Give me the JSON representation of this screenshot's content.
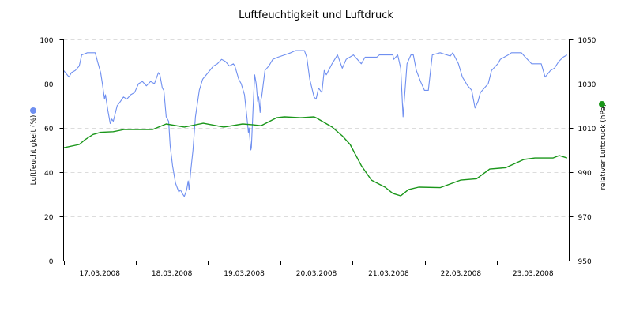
{
  "chart_data": {
    "type": "line",
    "title": "Luftfeuchtigkeit und Luftdruck",
    "x_range": [
      "2008-03-17T00:00",
      "2008-03-24T00:00"
    ],
    "x_tick_labels": [
      "17.03.2008",
      "18.03.2008",
      "19.03.2008",
      "20.03.2008",
      "21.03.2008",
      "22.03.2008",
      "23.03.2008"
    ],
    "grid": "horizontal dashed",
    "left_axis": {
      "label": "Luftfeuchtigkeit (%)",
      "range": [
        0,
        100
      ],
      "ticks": [
        "0",
        "20",
        "40",
        "60",
        "80",
        "100"
      ]
    },
    "right_axis": {
      "label": "relativer Luftdruck (hPa)",
      "range": [
        950,
        1050
      ],
      "ticks": [
        "950",
        "970",
        "990",
        "1010",
        "1030",
        "1050"
      ]
    },
    "series": [
      {
        "name": "Luftfeuchtigkeit (%)",
        "axis": "left",
        "color": "#6f8ff0",
        "points": [
          [
            "2008-03-17T00:00",
            86
          ],
          [
            "2008-03-17T01:48",
            83
          ],
          [
            "2008-03-17T02:36",
            85
          ],
          [
            "2008-03-17T03:54",
            86
          ],
          [
            "2008-03-17T05:12",
            88
          ],
          [
            "2008-03-17T06:00",
            93
          ],
          [
            "2008-03-17T07:54",
            94
          ],
          [
            "2008-03-17T10:30",
            94
          ],
          [
            "2008-03-17T11:18",
            90
          ],
          [
            "2008-03-17T12:18",
            85
          ],
          [
            "2008-03-17T12:54",
            80
          ],
          [
            "2008-03-17T13:36",
            73
          ],
          [
            "2008-03-17T13:54",
            75
          ],
          [
            "2008-03-17T14:42",
            68
          ],
          [
            "2008-03-17T15:30",
            62
          ],
          [
            "2008-03-17T16:00",
            64
          ],
          [
            "2008-03-17T16:30",
            63
          ],
          [
            "2008-03-17T17:48",
            70
          ],
          [
            "2008-03-17T18:54",
            72
          ],
          [
            "2008-03-17T19:54",
            74
          ],
          [
            "2008-03-17T21:00",
            73
          ],
          [
            "2008-03-17T22:18",
            75
          ],
          [
            "2008-03-17T23:36",
            76
          ],
          [
            "2008-03-18T00:54",
            80
          ],
          [
            "2008-03-18T02:12",
            81
          ],
          [
            "2008-03-18T03:30",
            79
          ],
          [
            "2008-03-18T04:54",
            81
          ],
          [
            "2008-03-18T06:12",
            80
          ],
          [
            "2008-03-18T07:30",
            85
          ],
          [
            "2008-03-18T08:00",
            84
          ],
          [
            "2008-03-18T08:48",
            78
          ],
          [
            "2008-03-18T09:18",
            77
          ],
          [
            "2008-03-18T10:06",
            65
          ],
          [
            "2008-03-18T10:54",
            63
          ],
          [
            "2008-03-18T11:24",
            52
          ],
          [
            "2008-03-18T12:12",
            43
          ],
          [
            "2008-03-18T13:12",
            35
          ],
          [
            "2008-03-18T14:18",
            31
          ],
          [
            "2008-03-18T14:48",
            32
          ],
          [
            "2008-03-18T15:36",
            30
          ],
          [
            "2008-03-18T16:06",
            29
          ],
          [
            "2008-03-18T16:54",
            32
          ],
          [
            "2008-03-18T17:24",
            36
          ],
          [
            "2008-03-18T17:42",
            32
          ],
          [
            "2008-03-18T18:12",
            40
          ],
          [
            "2008-03-18T19:00",
            50
          ],
          [
            "2008-03-18T19:48",
            65
          ],
          [
            "2008-03-18T21:06",
            77
          ],
          [
            "2008-03-18T22:12",
            82
          ],
          [
            "2008-03-19T00:00",
            85
          ],
          [
            "2008-03-19T01:48",
            88
          ],
          [
            "2008-03-19T03:06",
            89
          ],
          [
            "2008-03-19T04:30",
            91
          ],
          [
            "2008-03-19T05:48",
            90
          ],
          [
            "2008-03-19T07:06",
            88
          ],
          [
            "2008-03-19T08:24",
            89
          ],
          [
            "2008-03-19T08:54",
            88
          ],
          [
            "2008-03-19T10:12",
            82
          ],
          [
            "2008-03-19T11:00",
            80
          ],
          [
            "2008-03-19T12:06",
            75
          ],
          [
            "2008-03-19T12:54",
            65
          ],
          [
            "2008-03-19T13:24",
            58
          ],
          [
            "2008-03-19T13:36",
            60
          ],
          [
            "2008-03-19T14:12",
            50
          ],
          [
            "2008-03-19T14:24",
            51
          ],
          [
            "2008-03-19T15:00",
            70
          ],
          [
            "2008-03-19T15:30",
            84
          ],
          [
            "2008-03-19T16:00",
            80
          ],
          [
            "2008-03-19T16:30",
            72
          ],
          [
            "2008-03-19T16:48",
            74
          ],
          [
            "2008-03-19T17:18",
            67
          ],
          [
            "2008-03-19T17:36",
            73
          ],
          [
            "2008-03-19T17:48",
            74
          ],
          [
            "2008-03-19T18:54",
            86
          ],
          [
            "2008-03-19T20:12",
            88
          ],
          [
            "2008-03-19T21:30",
            91
          ],
          [
            "2008-03-19T23:18",
            92
          ],
          [
            "2008-03-20T01:24",
            93
          ],
          [
            "2008-03-20T03:30",
            94
          ],
          [
            "2008-03-20T05:06",
            95
          ],
          [
            "2008-03-20T08:00",
            95
          ],
          [
            "2008-03-20T08:48",
            92
          ],
          [
            "2008-03-20T09:48",
            82
          ],
          [
            "2008-03-20T11:12",
            74
          ],
          [
            "2008-03-20T11:54",
            73
          ],
          [
            "2008-03-20T12:42",
            78
          ],
          [
            "2008-03-20T13:48",
            76
          ],
          [
            "2008-03-20T14:36",
            86
          ],
          [
            "2008-03-20T15:18",
            84
          ],
          [
            "2008-03-20T17:12",
            89
          ],
          [
            "2008-03-20T19:00",
            93
          ],
          [
            "2008-03-20T20:36",
            87
          ],
          [
            "2008-03-20T21:54",
            91
          ],
          [
            "2008-03-21T00:18",
            93
          ],
          [
            "2008-03-21T02:54",
            89
          ],
          [
            "2008-03-21T04:12",
            92
          ],
          [
            "2008-03-21T08:06",
            92
          ],
          [
            "2008-03-21T08:54",
            93
          ],
          [
            "2008-03-21T13:24",
            93
          ],
          [
            "2008-03-21T13:42",
            91
          ],
          [
            "2008-03-21T15:00",
            93
          ],
          [
            "2008-03-21T16:00",
            87
          ],
          [
            "2008-03-21T16:48",
            65
          ],
          [
            "2008-03-21T18:06",
            89
          ],
          [
            "2008-03-21T19:24",
            93
          ],
          [
            "2008-03-21T20:12",
            93
          ],
          [
            "2008-03-21T21:12",
            86
          ],
          [
            "2008-03-21T22:36",
            81
          ],
          [
            "2008-03-21T23:54",
            77
          ],
          [
            "2008-03-22T01:12",
            77
          ],
          [
            "2008-03-22T02:30",
            93
          ],
          [
            "2008-03-22T05:06",
            94
          ],
          [
            "2008-03-22T08:30",
            92.5
          ],
          [
            "2008-03-22T09:18",
            94
          ],
          [
            "2008-03-22T11:12",
            89
          ],
          [
            "2008-03-22T12:30",
            83
          ],
          [
            "2008-03-22T14:18",
            79
          ],
          [
            "2008-03-22T15:36",
            77
          ],
          [
            "2008-03-22T16:42",
            69
          ],
          [
            "2008-03-22T17:42",
            72
          ],
          [
            "2008-03-22T18:30",
            76
          ],
          [
            "2008-03-22T21:06",
            80
          ],
          [
            "2008-03-22T22:12",
            86
          ],
          [
            "2008-03-23T00:18",
            89
          ],
          [
            "2008-03-23T01:06",
            91
          ],
          [
            "2008-03-23T03:42",
            93
          ],
          [
            "2008-03-23T04:48",
            94
          ],
          [
            "2008-03-23T08:06",
            94
          ],
          [
            "2008-03-23T09:24",
            92
          ],
          [
            "2008-03-23T11:30",
            89
          ],
          [
            "2008-03-23T14:42",
            89
          ],
          [
            "2008-03-23T16:00",
            83
          ],
          [
            "2008-03-23T17:48",
            86
          ],
          [
            "2008-03-23T19:06",
            87
          ],
          [
            "2008-03-23T20:30",
            90
          ],
          [
            "2008-03-23T22:00",
            92
          ],
          [
            "2008-03-23T23:18",
            93
          ]
        ]
      },
      {
        "name": "relativer Luftdruck (hPa)",
        "axis": "right",
        "color": "#1a961a",
        "points": [
          [
            "2008-03-17T00:00",
            1001
          ],
          [
            "2008-03-17T05:12",
            1002.5
          ],
          [
            "2008-03-17T07:06",
            1004.6
          ],
          [
            "2008-03-17T09:42",
            1007
          ],
          [
            "2008-03-17T12:18",
            1008
          ],
          [
            "2008-03-17T16:30",
            1008.3
          ],
          [
            "2008-03-17T20:12",
            1009.3
          ],
          [
            "2008-03-18T05:36",
            1009.3
          ],
          [
            "2008-03-18T10:06",
            1011.8
          ],
          [
            "2008-03-18T16:06",
            1010.4
          ],
          [
            "2008-03-18T22:24",
            1012.1
          ],
          [
            "2008-03-19T05:12",
            1010.4
          ],
          [
            "2008-03-19T11:30",
            1011.8
          ],
          [
            "2008-03-19T15:00",
            1011.4
          ],
          [
            "2008-03-19T17:36",
            1011
          ],
          [
            "2008-03-19T22:48",
            1014.6
          ],
          [
            "2008-03-20T01:24",
            1015
          ],
          [
            "2008-03-20T06:42",
            1014.6
          ],
          [
            "2008-03-20T11:12",
            1015
          ],
          [
            "2008-03-20T11:54",
            1014.6
          ],
          [
            "2008-03-20T17:12",
            1010.4
          ],
          [
            "2008-03-20T20:36",
            1006.4
          ],
          [
            "2008-03-20T23:12",
            1002.5
          ],
          [
            "2008-03-21T02:54",
            993
          ],
          [
            "2008-03-21T06:18",
            986.4
          ],
          [
            "2008-03-21T10:48",
            983.2
          ],
          [
            "2008-03-21T13:24",
            980.4
          ],
          [
            "2008-03-21T16:00",
            979.3
          ],
          [
            "2008-03-21T18:36",
            982.1
          ],
          [
            "2008-03-21T22:00",
            983.2
          ],
          [
            "2008-03-22T05:06",
            983
          ],
          [
            "2008-03-22T11:54",
            986.4
          ],
          [
            "2008-03-22T17:12",
            987
          ],
          [
            "2008-03-22T21:36",
            991.4
          ],
          [
            "2008-03-23T02:54",
            992
          ],
          [
            "2008-03-23T08:54",
            995.7
          ],
          [
            "2008-03-23T12:36",
            996.4
          ],
          [
            "2008-03-23T18:36",
            996.4
          ],
          [
            "2008-03-23T20:42",
            997.5
          ],
          [
            "2008-03-23T23:18",
            996.4
          ]
        ]
      }
    ]
  }
}
